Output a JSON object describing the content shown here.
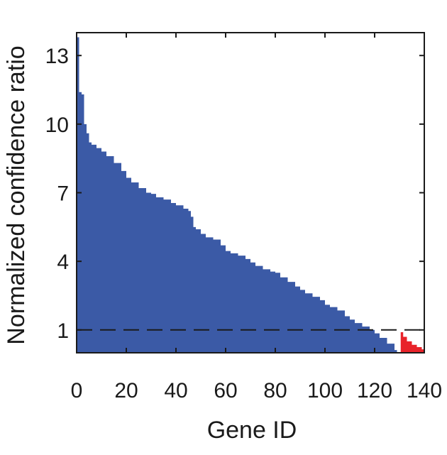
{
  "chart_data": {
    "type": "area",
    "title": "",
    "xlabel": "Gene ID",
    "ylabel": "Normalized confidence ratio",
    "xlim": [
      0,
      140
    ],
    "ylim": [
      0,
      14
    ],
    "xticks": [
      "0",
      "20",
      "40",
      "60",
      "80",
      "100",
      "120",
      "140"
    ],
    "yticks": [
      "1",
      "4",
      "7",
      "10",
      "13"
    ],
    "grid": false,
    "reference_line": {
      "y": 1,
      "style": "dashed"
    },
    "colors": {
      "above": "#3b5aa6",
      "below": "#e8232a",
      "axis": "#1a1a1a"
    },
    "series": [
      {
        "color": "#3b5aa6",
        "x": [
          0,
          1,
          2,
          3,
          4,
          5,
          6,
          8,
          10,
          12,
          15,
          18,
          20,
          22,
          25,
          28,
          30,
          32,
          35,
          38,
          40,
          43,
          45,
          46,
          47,
          48,
          50,
          52,
          55,
          58,
          60,
          62,
          65,
          68,
          70,
          72,
          75,
          78,
          80,
          82,
          85,
          88,
          90,
          92,
          95,
          98,
          100,
          102,
          105,
          108,
          110,
          112,
          115,
          118,
          120,
          122,
          125,
          128,
          129
        ],
        "values": [
          13.8,
          11.4,
          11.3,
          10.0,
          9.6,
          9.2,
          9.1,
          8.95,
          8.8,
          8.6,
          8.3,
          7.95,
          7.65,
          7.45,
          7.2,
          7.0,
          6.95,
          6.8,
          6.7,
          6.55,
          6.45,
          6.3,
          6.2,
          5.95,
          5.5,
          5.4,
          5.2,
          5.05,
          4.95,
          4.7,
          4.45,
          4.35,
          4.25,
          4.1,
          3.95,
          3.8,
          3.65,
          3.55,
          3.5,
          3.3,
          3.1,
          2.9,
          2.75,
          2.6,
          2.45,
          2.3,
          2.1,
          2.0,
          1.85,
          1.6,
          1.45,
          1.3,
          1.15,
          1.0,
          0.85,
          0.65,
          0.4,
          0.12,
          0.02
        ]
      },
      {
        "color": "#e8232a",
        "x": [
          130,
          130.5,
          131.5,
          133,
          135,
          137,
          139,
          140
        ],
        "values": [
          0.0,
          0.9,
          0.7,
          0.5,
          0.35,
          0.25,
          0.15,
          0.1
        ]
      }
    ]
  }
}
